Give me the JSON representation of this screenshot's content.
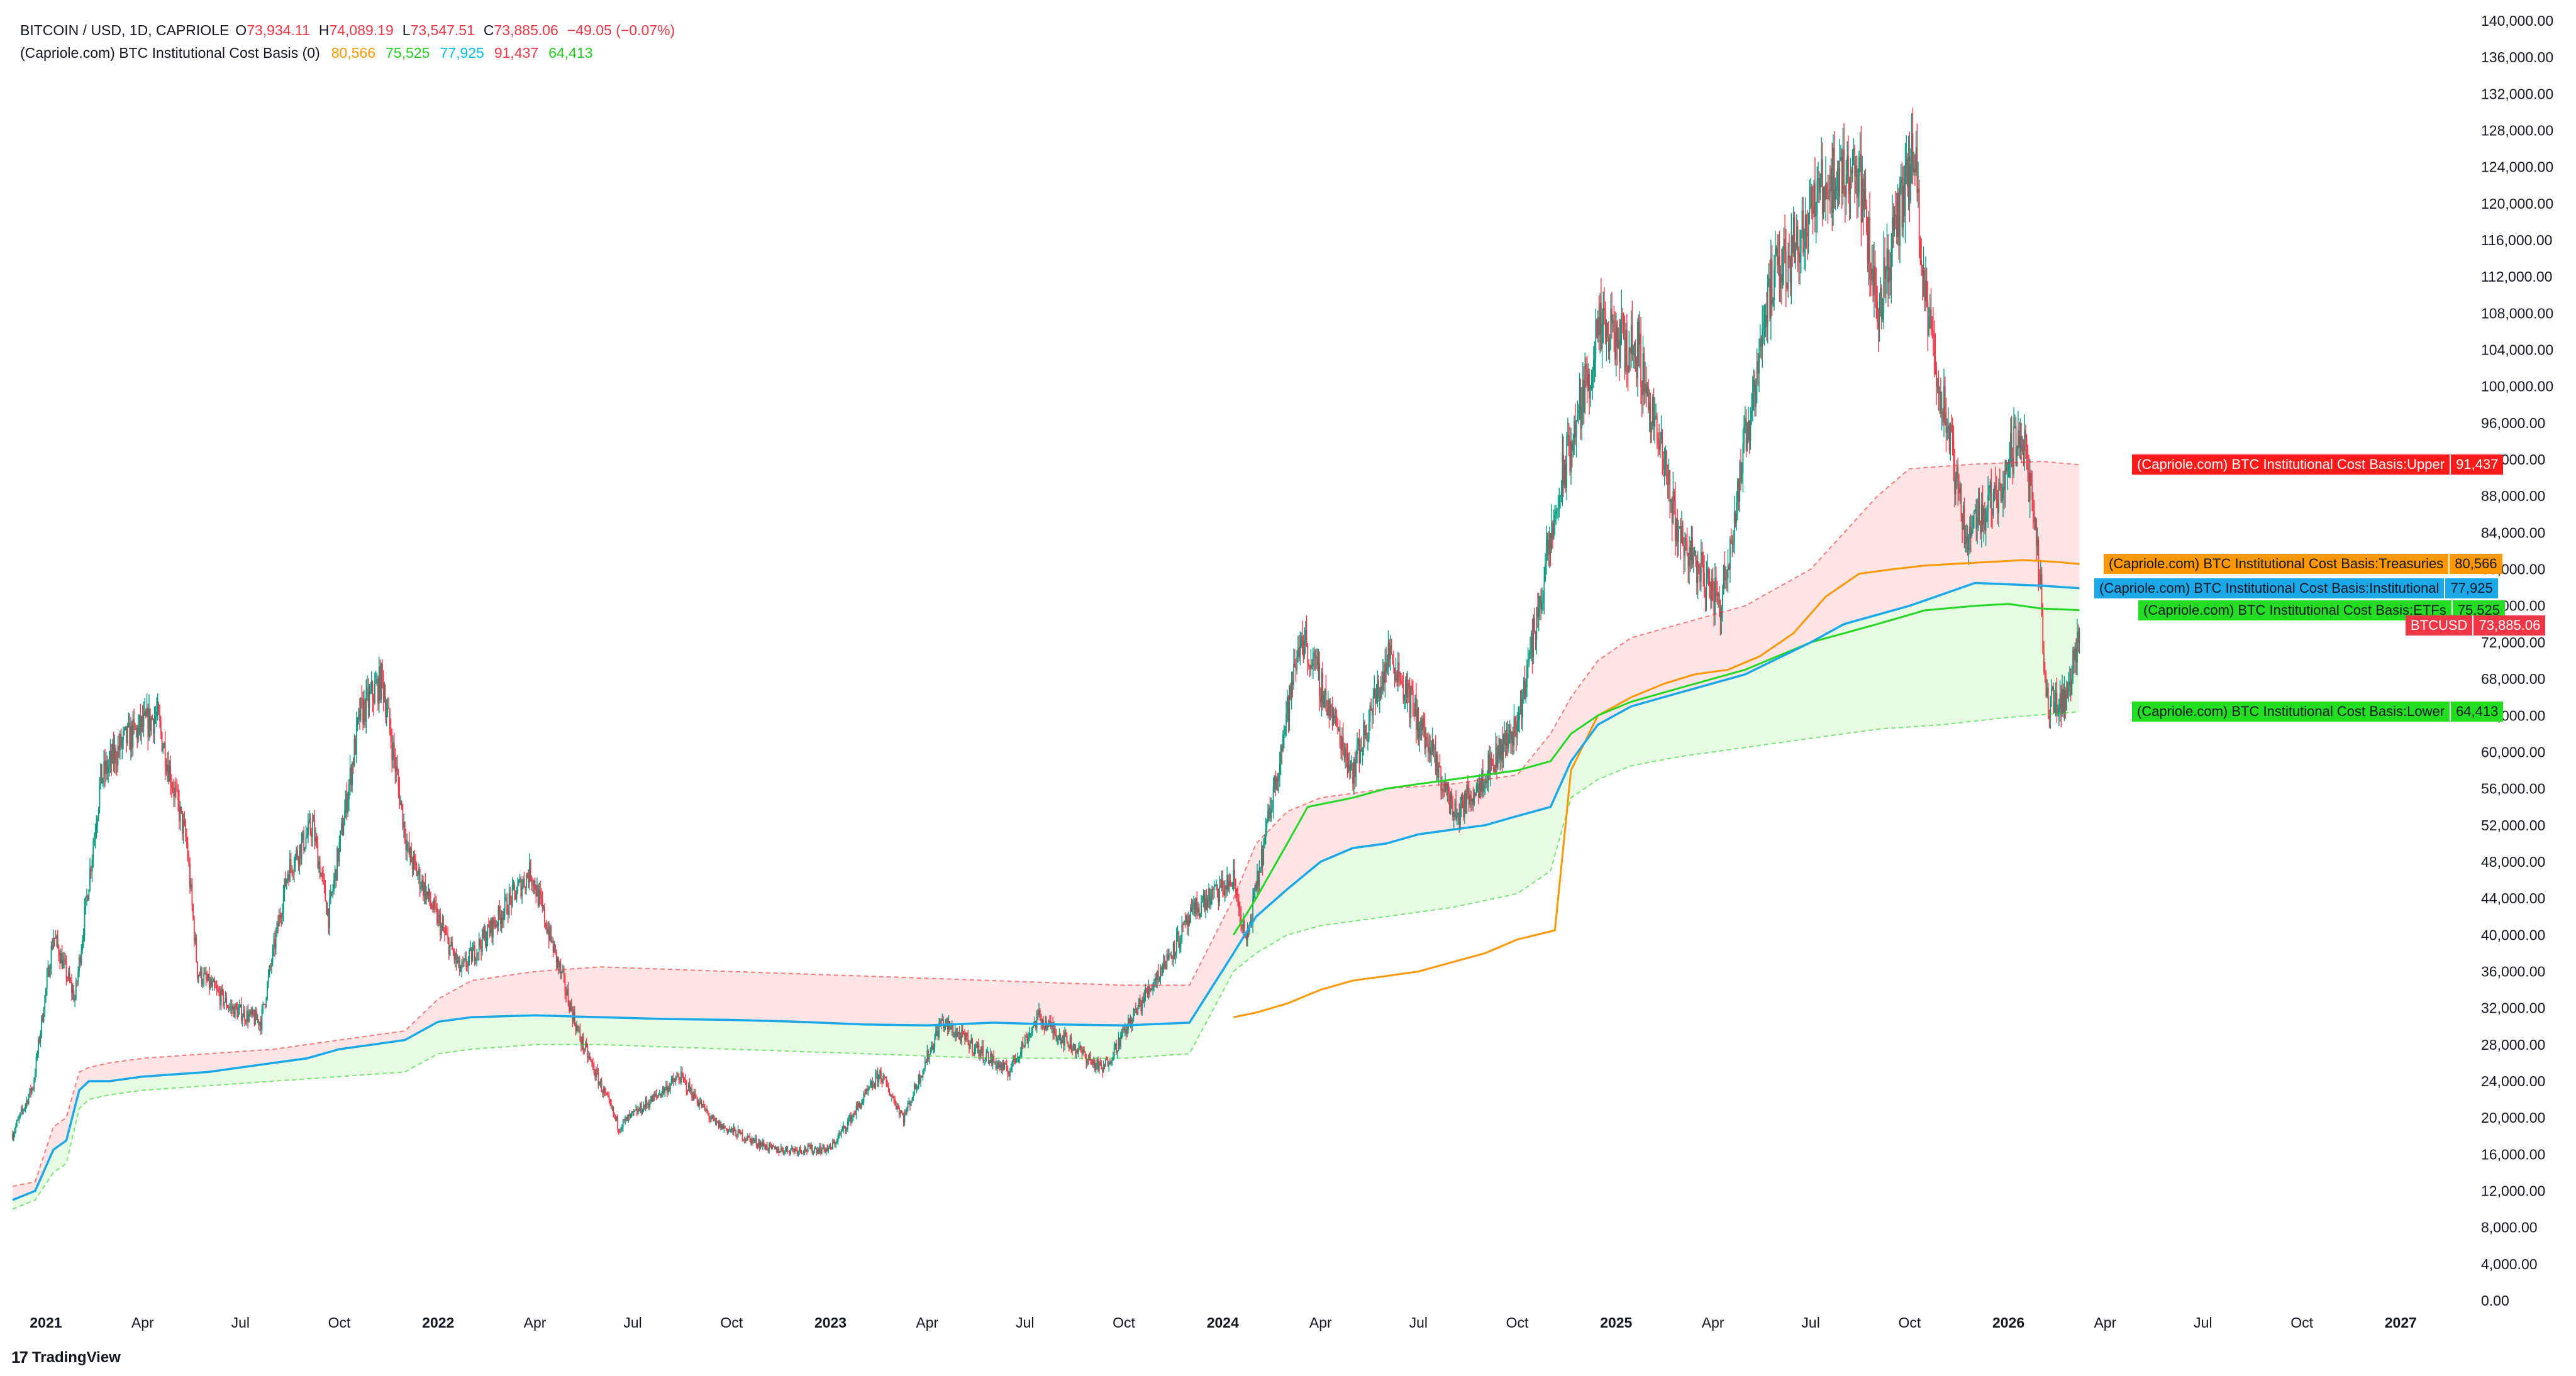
{
  "header": {
    "symbol_line": "BITCOIN / USD, 1D, CAPRIOLE",
    "ohlc": [
      {
        "k": "O",
        "v": "73,934.11"
      },
      {
        "k": "H",
        "v": "74,089.19"
      },
      {
        "k": "L",
        "v": "73,547.51"
      },
      {
        "k": "C",
        "v": "73,885.06"
      }
    ],
    "change": "−49.05 (−0.07%)",
    "indicator_name": "(Capriole.com) BTC Institutional Cost Basis (0)",
    "indicator_values": [
      {
        "v": "80,566",
        "color": "#ff9800"
      },
      {
        "v": "75,525",
        "color": "#22cc22"
      },
      {
        "v": "77,925",
        "color": "#00bcf2"
      },
      {
        "v": "91,437",
        "color": "#f23645"
      },
      {
        "v": "64,413",
        "color": "#22cc22"
      }
    ]
  },
  "brand": {
    "logo": "17",
    "name": "TradingView"
  },
  "colors": {
    "treasuries": "#ff9800",
    "institutional": "#1aa8e8",
    "etfs": "#22d822",
    "upper": "#ff1a1a",
    "lower": "#22dd22",
    "candle_up": "#089981",
    "candle_down": "#f23645",
    "upper_fill": "#fde2e2",
    "lower_fill": "#e4fbe0"
  },
  "tags": {
    "upper": {
      "name": "(Capriole.com) BTC Institutional Cost Basis:Upper",
      "val": "91,437"
    },
    "treasuries": {
      "name": "(Capriole.com) BTC Institutional Cost Basis:Treasuries",
      "val": "80,566"
    },
    "institutional": {
      "name": "(Capriole.com) BTC Institutional Cost Basis:Institutional",
      "val": "77,925"
    },
    "etfs": {
      "name": "(Capriole.com) BTC Institutional Cost Basis:ETFs",
      "val": "75,525"
    },
    "btcusd": {
      "name": "BTCUSD",
      "val": "73,885.06"
    },
    "lower": {
      "name": "(Capriole.com) BTC Institutional Cost Basis:Lower",
      "val": "64,413"
    }
  },
  "chart_data": {
    "type": "line",
    "title": "BITCOIN / USD, 1D, CAPRIOLE",
    "x_range": [
      "2020-12-01",
      "2027-03-05"
    ],
    "ylim": [
      0,
      140000
    ],
    "y_ticks": [
      "0.00",
      "4,000.00",
      "8,000.00",
      "12,000.00",
      "16,000.00",
      "20,000.00",
      "24,000.00",
      "28,000.00",
      "32,000.00",
      "36,000.00",
      "40,000.00",
      "44,000.00",
      "48,000.00",
      "52,000.00",
      "56,000.00",
      "60,000.00",
      "64,000.00",
      "68,000.00",
      "72,000.00",
      "76,000.00",
      "80,000.00",
      "84,000.00",
      "88,000.00",
      "92,000.00",
      "96,000.00",
      "100,000.00",
      "104,000.00",
      "108,000.00",
      "112,000.00",
      "116,000.00",
      "120,000.00",
      "124,000.00",
      "128,000.00",
      "132,000.00",
      "136,000.00",
      "140,000.00"
    ],
    "x_ticks": [
      {
        "label": "2021",
        "date": "2021-01-01",
        "bold": true
      },
      {
        "label": "Apr",
        "date": "2021-04-01"
      },
      {
        "label": "Jul",
        "date": "2021-07-01"
      },
      {
        "label": "Oct",
        "date": "2021-10-01"
      },
      {
        "label": "2022",
        "date": "2022-01-01",
        "bold": true
      },
      {
        "label": "Apr",
        "date": "2022-04-01"
      },
      {
        "label": "Jul",
        "date": "2022-07-01"
      },
      {
        "label": "Oct",
        "date": "2022-10-01"
      },
      {
        "label": "2023",
        "date": "2023-01-01",
        "bold": true
      },
      {
        "label": "Apr",
        "date": "2023-04-01"
      },
      {
        "label": "Jul",
        "date": "2023-07-01"
      },
      {
        "label": "Oct",
        "date": "2023-10-01"
      },
      {
        "label": "2024",
        "date": "2024-01-01",
        "bold": true
      },
      {
        "label": "Apr",
        "date": "2024-04-01"
      },
      {
        "label": "Jul",
        "date": "2024-07-01"
      },
      {
        "label": "Oct",
        "date": "2024-10-01"
      },
      {
        "label": "2025",
        "date": "2025-01-01",
        "bold": true
      },
      {
        "label": "Apr",
        "date": "2025-04-01"
      },
      {
        "label": "Jul",
        "date": "2025-07-01"
      },
      {
        "label": "Oct",
        "date": "2025-10-01"
      },
      {
        "label": "2026",
        "date": "2026-01-01",
        "bold": true
      },
      {
        "label": "Apr",
        "date": "2026-04-01"
      },
      {
        "label": "Jul",
        "date": "2026-07-01"
      },
      {
        "label": "Oct",
        "date": "2026-10-01"
      },
      {
        "label": "2027",
        "date": "2027-01-01",
        "bold": true
      }
    ],
    "series": [
      {
        "name": "BTCUSD",
        "style": "candles",
        "x": [
          "2020-12-01",
          "2020-12-20",
          "2021-01-08",
          "2021-01-28",
          "2021-02-21",
          "2021-03-13",
          "2021-04-14",
          "2021-05-12",
          "2021-05-22",
          "2021-06-22",
          "2021-07-20",
          "2021-08-14",
          "2021-09-06",
          "2021-09-21",
          "2021-10-20",
          "2021-11-10",
          "2021-12-04",
          "2022-01-22",
          "2022-03-28",
          "2022-05-12",
          "2022-06-18",
          "2022-08-14",
          "2022-09-15",
          "2022-11-09",
          "2023-01-01",
          "2023-02-16",
          "2023-03-10",
          "2023-04-14",
          "2023-06-15",
          "2023-07-13",
          "2023-09-11",
          "2023-10-24",
          "2023-12-08",
          "2024-01-11",
          "2024-01-23",
          "2024-03-14",
          "2024-05-01",
          "2024-06-05",
          "2024-08-05",
          "2024-10-01",
          "2024-11-12",
          "2024-12-17",
          "2025-01-21",
          "2025-02-28",
          "2025-04-08",
          "2025-05-22",
          "2025-07-14",
          "2025-08-14",
          "2025-09-01",
          "2025-10-06",
          "2025-10-12",
          "2025-11-21",
          "2025-12-20",
          "2026-01-14",
          "2026-01-31",
          "2026-02-05",
          "2026-02-25",
          "2026-03-08"
        ],
        "values": [
          18200,
          23500,
          40000,
          33000,
          57000,
          61000,
          64000,
          50000,
          36000,
          32000,
          30500,
          47000,
          52000,
          42000,
          64000,
          68000,
          49000,
          36000,
          47000,
          29000,
          19000,
          24500,
          19400,
          16500,
          16600,
          24800,
          20000,
          30500,
          25000,
          31000,
          25200,
          34000,
          43000,
          46000,
          39000,
          73000,
          58000,
          71000,
          53000,
          63000,
          90000,
          106000,
          104000,
          84000,
          76000,
          110000,
          122000,
          124000,
          108500,
          126000,
          112000,
          84000,
          88000,
          96000,
          78000,
          65000,
          66000,
          73885
        ]
      },
      {
        "name": "Treasuries",
        "x": [
          "2024-01-11",
          "2024-02-01",
          "2024-03-01",
          "2024-04-01",
          "2024-05-01",
          "2024-06-01",
          "2024-07-01",
          "2024-08-01",
          "2024-09-01",
          "2024-10-01",
          "2024-11-05",
          "2024-11-20",
          "2024-12-15",
          "2025-01-15",
          "2025-02-15",
          "2025-03-15",
          "2025-04-15",
          "2025-05-15",
          "2025-06-15",
          "2025-07-15",
          "2025-08-15",
          "2025-09-15",
          "2025-10-15",
          "2025-11-15",
          "2025-12-15",
          "2026-01-15",
          "2026-02-15",
          "2026-03-08"
        ],
        "values": [
          31000,
          31500,
          32500,
          34000,
          35000,
          35500,
          36000,
          37000,
          38000,
          39500,
          40500,
          58000,
          64000,
          66000,
          67500,
          68500,
          69000,
          70500,
          73000,
          77000,
          79500,
          80000,
          80400,
          80600,
          80800,
          81000,
          80800,
          80566
        ]
      },
      {
        "name": "Institutional",
        "x": [
          "2020-12-01",
          "2020-12-22",
          "2021-01-08",
          "2021-01-20",
          "2021-02-01",
          "2021-02-10",
          "2021-03-01",
          "2021-04-01",
          "2021-06-01",
          "2021-07-01",
          "2021-08-01",
          "2021-09-01",
          "2021-10-01",
          "2021-11-01",
          "2021-12-01",
          "2022-01-01",
          "2022-02-01",
          "2022-04-01",
          "2022-06-01",
          "2022-08-01",
          "2022-10-01",
          "2022-12-01",
          "2023-02-01",
          "2023-04-01",
          "2023-06-01",
          "2023-08-01",
          "2023-10-01",
          "2023-12-01",
          "2024-01-11",
          "2024-02-01",
          "2024-03-01",
          "2024-04-01",
          "2024-05-01",
          "2024-06-01",
          "2024-07-01",
          "2024-08-01",
          "2024-09-01",
          "2024-10-01",
          "2024-11-01",
          "2024-11-20",
          "2024-12-15",
          "2025-01-15",
          "2025-03-01",
          "2025-05-01",
          "2025-07-01",
          "2025-08-01",
          "2025-10-01",
          "2025-12-01",
          "2026-02-01",
          "2026-03-08"
        ],
        "values": [
          11000,
          12000,
          16500,
          17500,
          23000,
          24000,
          24000,
          24500,
          25000,
          25500,
          26000,
          26500,
          27500,
          28000,
          28500,
          30500,
          31000,
          31200,
          31000,
          30800,
          30700,
          30500,
          30200,
          30100,
          30400,
          30200,
          30100,
          30400,
          38000,
          42000,
          45000,
          48000,
          49500,
          50000,
          51000,
          51500,
          52000,
          53000,
          54000,
          59000,
          63000,
          65000,
          66500,
          68500,
          72000,
          74000,
          76000,
          78500,
          78200,
          77925
        ]
      },
      {
        "name": "ETFs",
        "x": [
          "2024-01-11",
          "2024-02-01",
          "2024-03-01",
          "2024-03-20",
          "2024-05-01",
          "2024-06-01",
          "2024-07-01",
          "2024-08-01",
          "2024-09-01",
          "2024-10-01",
          "2024-11-01",
          "2024-11-20",
          "2024-12-15",
          "2025-01-15",
          "2025-03-01",
          "2025-05-01",
          "2025-07-01",
          "2025-08-01",
          "2025-09-01",
          "2025-10-15",
          "2025-12-01",
          "2026-01-01",
          "2026-02-01",
          "2026-03-08"
        ],
        "values": [
          40000,
          44000,
          50000,
          54000,
          55000,
          56000,
          56500,
          57000,
          57500,
          58000,
          59000,
          62000,
          64000,
          65500,
          67000,
          69000,
          72000,
          73000,
          74000,
          75500,
          76000,
          76200,
          75700,
          75525
        ]
      },
      {
        "name": "Upper",
        "x": [
          "2020-12-01",
          "2020-12-22",
          "2021-01-08",
          "2021-01-20",
          "2021-02-01",
          "2021-02-10",
          "2021-03-01",
          "2021-04-01",
          "2021-06-01",
          "2021-08-01",
          "2021-10-01",
          "2021-12-01",
          "2022-01-01",
          "2022-02-01",
          "2022-04-01",
          "2022-06-01",
          "2022-10-01",
          "2023-02-01",
          "2023-06-01",
          "2023-10-01",
          "2023-12-01",
          "2024-01-11",
          "2024-02-01",
          "2024-03-01",
          "2024-04-01",
          "2024-06-01",
          "2024-08-01",
          "2024-10-01",
          "2024-11-01",
          "2024-11-20",
          "2024-12-15",
          "2025-01-15",
          "2025-03-01",
          "2025-05-01",
          "2025-07-01",
          "2025-08-01",
          "2025-09-01",
          "2025-10-01",
          "2025-12-01",
          "2026-02-01",
          "2026-03-08"
        ],
        "values": [
          12500,
          13000,
          19000,
          20000,
          25000,
          25500,
          26000,
          26500,
          27000,
          27500,
          28500,
          29500,
          33000,
          35000,
          36000,
          36500,
          36000,
          35500,
          35000,
          34500,
          34500,
          44000,
          50000,
          53500,
          55000,
          56000,
          56500,
          57500,
          62000,
          66000,
          70000,
          72500,
          74000,
          76000,
          80000,
          84000,
          88000,
          91000,
          91500,
          91800,
          91437
        ]
      },
      {
        "name": "Lower",
        "x": [
          "2020-12-01",
          "2020-12-22",
          "2021-01-08",
          "2021-01-20",
          "2021-02-01",
          "2021-02-10",
          "2021-03-01",
          "2021-04-01",
          "2021-06-01",
          "2021-08-01",
          "2021-10-01",
          "2021-12-01",
          "2022-01-01",
          "2022-02-01",
          "2022-04-01",
          "2022-06-01",
          "2022-10-01",
          "2023-02-01",
          "2023-06-01",
          "2023-10-01",
          "2023-12-01",
          "2024-01-11",
          "2024-02-01",
          "2024-03-01",
          "2024-04-01",
          "2024-06-01",
          "2024-08-01",
          "2024-10-01",
          "2024-11-01",
          "2024-11-20",
          "2024-12-15",
          "2025-01-15",
          "2025-03-01",
          "2025-05-01",
          "2025-07-01",
          "2025-09-01",
          "2025-11-01",
          "2026-01-01",
          "2026-03-08"
        ],
        "values": [
          10000,
          11000,
          14000,
          15000,
          21000,
          22000,
          22500,
          23000,
          23500,
          24000,
          24500,
          25000,
          27000,
          27500,
          28000,
          28000,
          27500,
          27000,
          26500,
          26500,
          27000,
          36000,
          38000,
          40000,
          41000,
          42000,
          43000,
          44500,
          47000,
          55000,
          57000,
          58500,
          59500,
          60500,
          61500,
          62500,
          63000,
          63800,
          64413
        ]
      }
    ],
    "grid": false,
    "legend": "top-left"
  }
}
